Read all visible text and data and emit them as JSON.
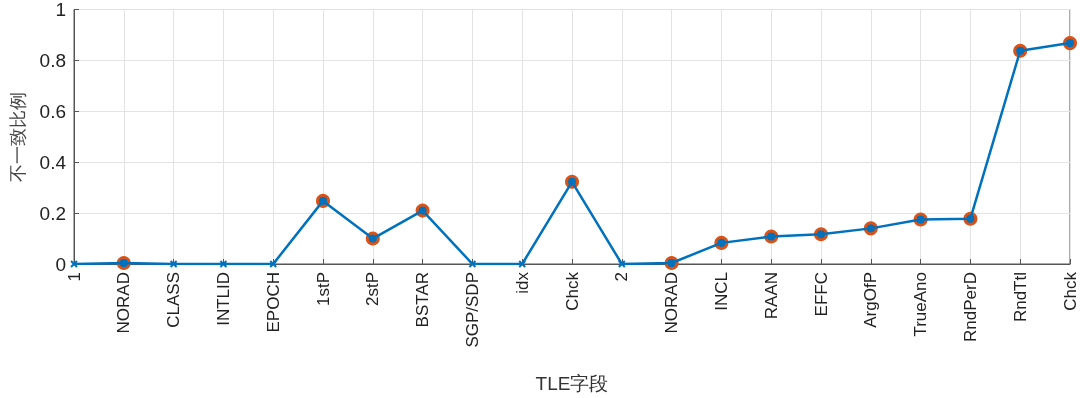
{
  "chart_data": {
    "type": "line",
    "xlabel": "TLE字段",
    "ylabel": "不一致比例",
    "categories": [
      "1",
      "NORAD",
      "CLASS",
      "INTLID",
      "EPOCH",
      "1stP",
      "2stP",
      "BSTAR",
      "SGP/SDP",
      "idx",
      "Chck",
      "2",
      "NORAD",
      "INCL",
      "RAAN",
      "EFFC",
      "ArgOfP",
      "TrueAno",
      "RndPerD",
      "RndTtl",
      "Chck"
    ],
    "series": [
      {
        "type": "scatter",
        "marker": "circle",
        "color": "#d95319",
        "values": [
          null,
          0.004,
          null,
          null,
          null,
          0.248,
          0.1,
          0.21,
          null,
          null,
          0.323,
          null,
          0.004,
          0.083,
          0.108,
          0.117,
          0.14,
          0.175,
          0.178,
          0.838,
          0.868
        ]
      },
      {
        "marker": "cross",
        "color": "#0072bd",
        "values": [
          0,
          0.004,
          0,
          0,
          0,
          0.248,
          0.1,
          0.21,
          0,
          0,
          0.323,
          0,
          0.004,
          0.083,
          0.108,
          0.117,
          0.14,
          0.175,
          0.178,
          0.838,
          0.868
        ]
      }
    ],
    "ylim": [
      0,
      1
    ],
    "yticks": [
      0,
      0.2,
      0.4,
      0.6,
      0.8,
      1
    ],
    "grid": true,
    "line_style": "solid"
  }
}
